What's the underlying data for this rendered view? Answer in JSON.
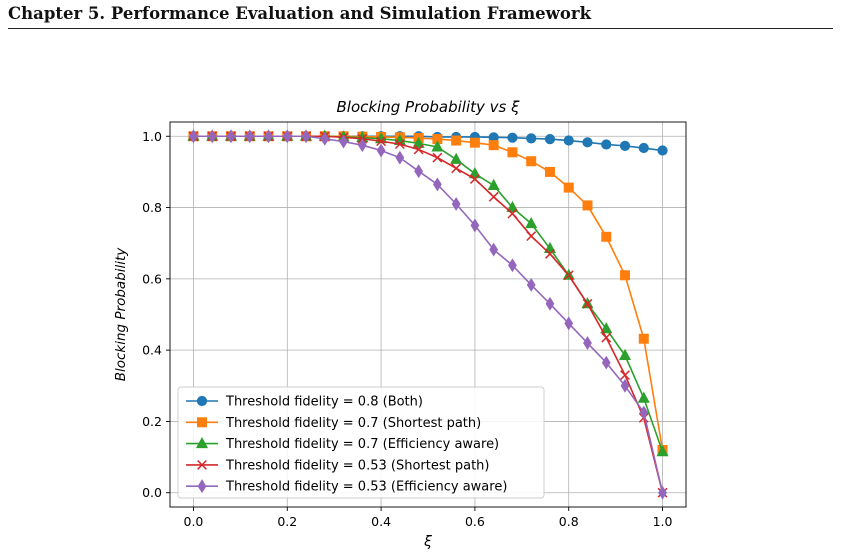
{
  "page_header": "Chapter 5.  Performance Evaluation and Simulation Framework",
  "chart_data": {
    "type": "line",
    "title": "Blocking Probability vs ξ",
    "xlabel": "ξ",
    "ylabel": "Blocking Probability",
    "xlim": [
      -0.05,
      1.05
    ],
    "ylim": [
      -0.04,
      1.04
    ],
    "xticks": [
      0.0,
      0.2,
      0.4,
      0.6,
      0.8,
      1.0
    ],
    "xtick_labels": [
      "0.0",
      "0.2",
      "0.4",
      "0.6",
      "0.8",
      "1.0"
    ],
    "yticks": [
      0.0,
      0.2,
      0.4,
      0.6,
      0.8,
      1.0
    ],
    "ytick_labels": [
      "0.0",
      "0.2",
      "0.4",
      "0.6",
      "0.8",
      "1.0"
    ],
    "grid": true,
    "legend_position": "bottom-left",
    "x": [
      0.0,
      0.04,
      0.08,
      0.12,
      0.16,
      0.2,
      0.24,
      0.28,
      0.32,
      0.36,
      0.4,
      0.44,
      0.48,
      0.52,
      0.56,
      0.6,
      0.64,
      0.68,
      0.72,
      0.76,
      0.8,
      0.84,
      0.88,
      0.92,
      0.96,
      1.0
    ],
    "series": [
      {
        "name": "Threshold fidelity = 0.8 (Both)",
        "color": "#1f77b4",
        "marker": "circle",
        "values": [
          1.0,
          1.0,
          1.0,
          1.0,
          1.0,
          1.0,
          1.0,
          1.0,
          1.0,
          1.0,
          1.0,
          1.0,
          1.0,
          0.998,
          0.998,
          0.998,
          0.997,
          0.996,
          0.994,
          0.992,
          0.988,
          0.983,
          0.977,
          0.973,
          0.967,
          0.96
        ]
      },
      {
        "name": "Threshold fidelity = 0.7 (Shortest path)",
        "color": "#ff7f0e",
        "marker": "square",
        "values": [
          1.0,
          1.0,
          1.0,
          1.0,
          1.0,
          1.0,
          1.0,
          1.0,
          1.0,
          0.999,
          0.998,
          0.997,
          0.995,
          0.992,
          0.988,
          0.982,
          0.975,
          0.955,
          0.93,
          0.9,
          0.856,
          0.806,
          0.718,
          0.61,
          0.432,
          0.12
        ]
      },
      {
        "name": "Threshold fidelity = 0.7 (Efficiency aware)",
        "color": "#2ca02c",
        "marker": "triangle",
        "values": [
          1.0,
          1.0,
          1.0,
          1.0,
          1.0,
          1.0,
          1.0,
          1.0,
          0.998,
          0.996,
          0.993,
          0.988,
          0.98,
          0.97,
          0.935,
          0.895,
          0.862,
          0.8,
          0.755,
          0.685,
          0.61,
          0.53,
          0.46,
          0.385,
          0.265,
          0.115
        ]
      },
      {
        "name": "Threshold fidelity = 0.53 (Shortest path)",
        "color": "#d62728",
        "marker": "x",
        "values": [
          1.0,
          1.0,
          1.0,
          1.0,
          1.0,
          1.0,
          1.0,
          1.0,
          0.997,
          0.993,
          0.986,
          0.978,
          0.963,
          0.94,
          0.91,
          0.88,
          0.83,
          0.783,
          0.72,
          0.67,
          0.61,
          0.53,
          0.435,
          0.33,
          0.21,
          0.0
        ]
      },
      {
        "name": "Threshold fidelity = 0.53 (Efficiency aware)",
        "color": "#9467bd",
        "marker": "diamond",
        "values": [
          1.0,
          1.0,
          1.0,
          1.0,
          1.0,
          1.0,
          1.0,
          0.993,
          0.985,
          0.975,
          0.96,
          0.94,
          0.902,
          0.865,
          0.81,
          0.75,
          0.682,
          0.638,
          0.583,
          0.53,
          0.475,
          0.42,
          0.365,
          0.3,
          0.225,
          0.0
        ]
      }
    ]
  }
}
